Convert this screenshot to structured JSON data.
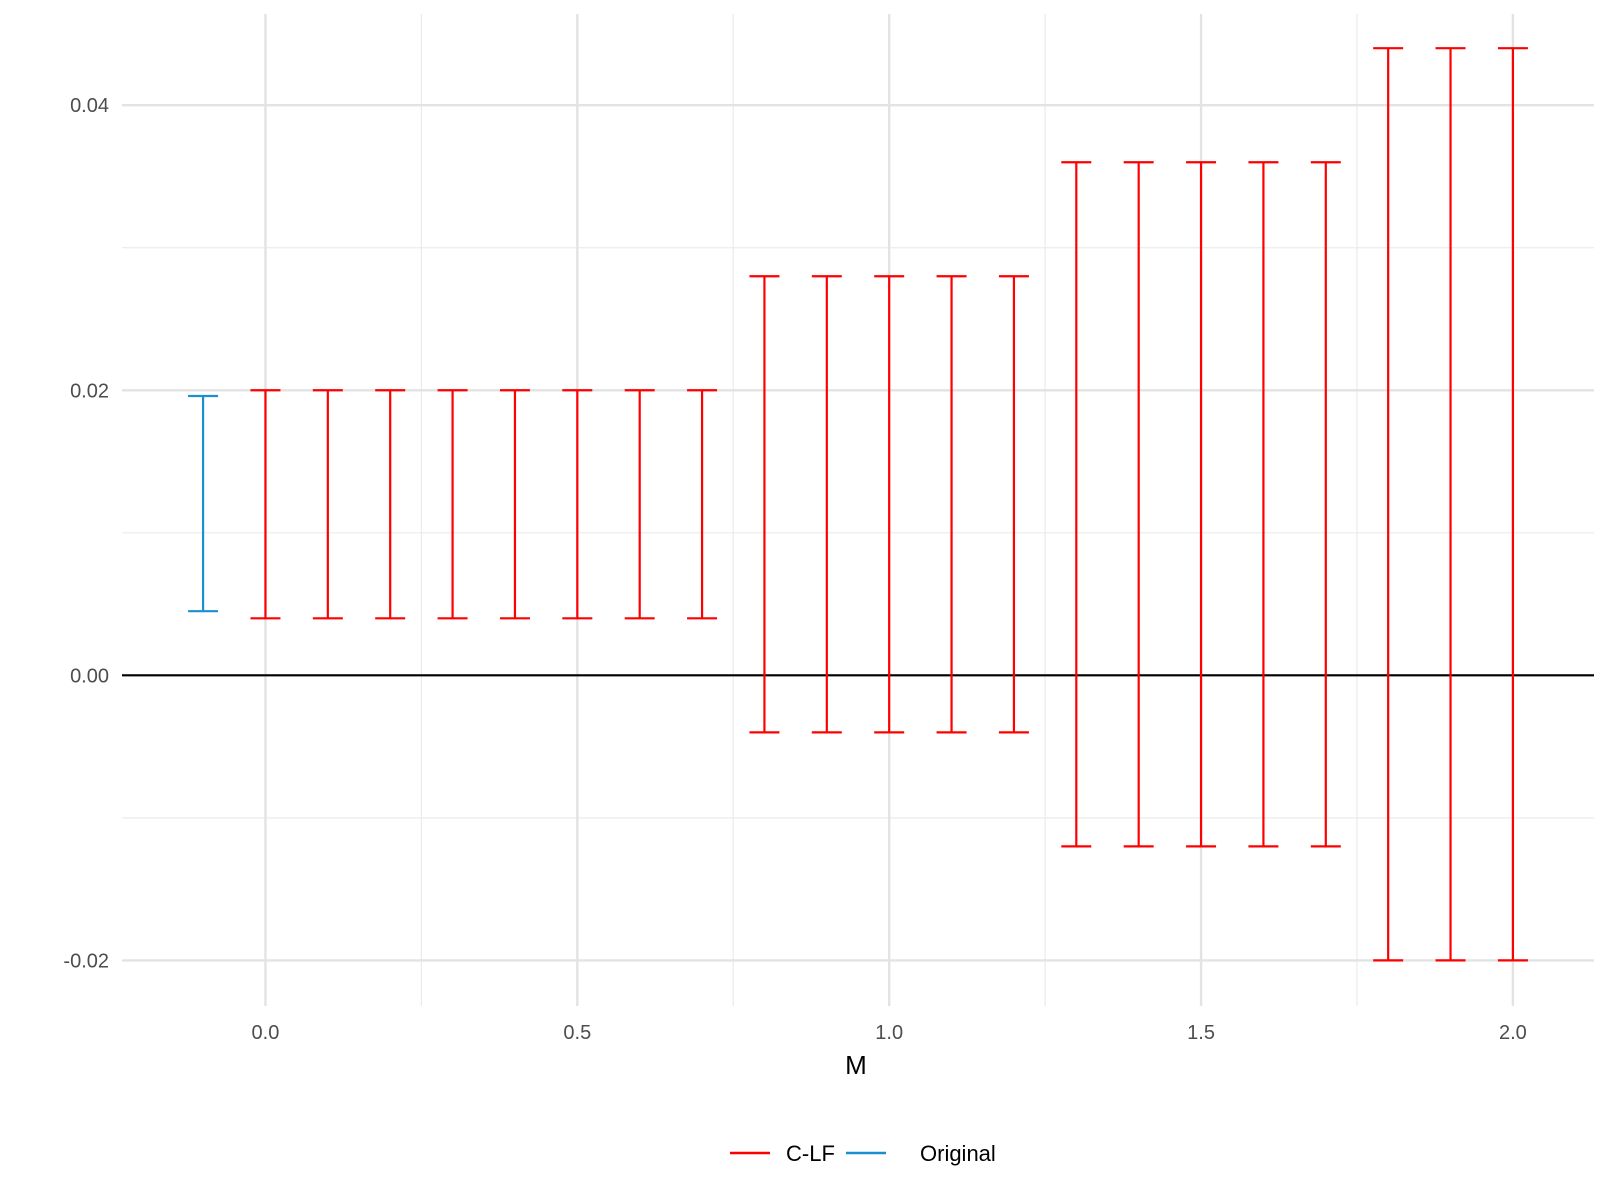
{
  "chart_data": {
    "type": "errorbar",
    "title": "",
    "xlabel": "M",
    "ylabel": "",
    "xlim": [
      -0.23,
      2.13
    ],
    "ylim": [
      -0.0232,
      0.0464
    ],
    "x_ticks": [
      0.0,
      0.5,
      1.0,
      1.5,
      2.0
    ],
    "x_tick_labels": [
      "0.0",
      "0.5",
      "1.0",
      "1.5",
      "2.0"
    ],
    "x_minor_gridlines": [
      0.25,
      0.75,
      1.25,
      1.75
    ],
    "y_ticks": [
      -0.02,
      0.0,
      0.02,
      0.04
    ],
    "y_tick_labels": [
      "-0.02",
      "0.00",
      "0.02",
      "0.04"
    ],
    "y_minor_gridlines": [
      -0.01,
      0.01,
      0.03
    ],
    "reference_line_y": 0.0,
    "grid": true,
    "legend_position": "bottom",
    "series": [
      {
        "name": "C-LF",
        "color": "#ff0000",
        "points": [
          {
            "x": 0.0,
            "lower": 0.004,
            "upper": 0.02
          },
          {
            "x": 0.1,
            "lower": 0.004,
            "upper": 0.02
          },
          {
            "x": 0.2,
            "lower": 0.004,
            "upper": 0.02
          },
          {
            "x": 0.3,
            "lower": 0.004,
            "upper": 0.02
          },
          {
            "x": 0.4,
            "lower": 0.004,
            "upper": 0.02
          },
          {
            "x": 0.5,
            "lower": 0.004,
            "upper": 0.02
          },
          {
            "x": 0.6,
            "lower": 0.004,
            "upper": 0.02
          },
          {
            "x": 0.7,
            "lower": 0.004,
            "upper": 0.02
          },
          {
            "x": 0.8,
            "lower": -0.004,
            "upper": 0.028
          },
          {
            "x": 0.9,
            "lower": -0.004,
            "upper": 0.028
          },
          {
            "x": 1.0,
            "lower": -0.004,
            "upper": 0.028
          },
          {
            "x": 1.1,
            "lower": -0.004,
            "upper": 0.028
          },
          {
            "x": 1.2,
            "lower": -0.004,
            "upper": 0.028
          },
          {
            "x": 1.3,
            "lower": -0.012,
            "upper": 0.036
          },
          {
            "x": 1.4,
            "lower": -0.012,
            "upper": 0.036
          },
          {
            "x": 1.5,
            "lower": -0.012,
            "upper": 0.036
          },
          {
            "x": 1.6,
            "lower": -0.012,
            "upper": 0.036
          },
          {
            "x": 1.7,
            "lower": -0.012,
            "upper": 0.036
          },
          {
            "x": 1.8,
            "lower": -0.02,
            "upper": 0.044
          },
          {
            "x": 1.9,
            "lower": -0.02,
            "upper": 0.044
          },
          {
            "x": 2.0,
            "lower": -0.02,
            "upper": 0.044
          }
        ]
      },
      {
        "name": "Original",
        "color": "#1b8fd1",
        "points": [
          {
            "x": -0.1,
            "lower": 0.0045,
            "upper": 0.0196
          }
        ]
      }
    ]
  }
}
